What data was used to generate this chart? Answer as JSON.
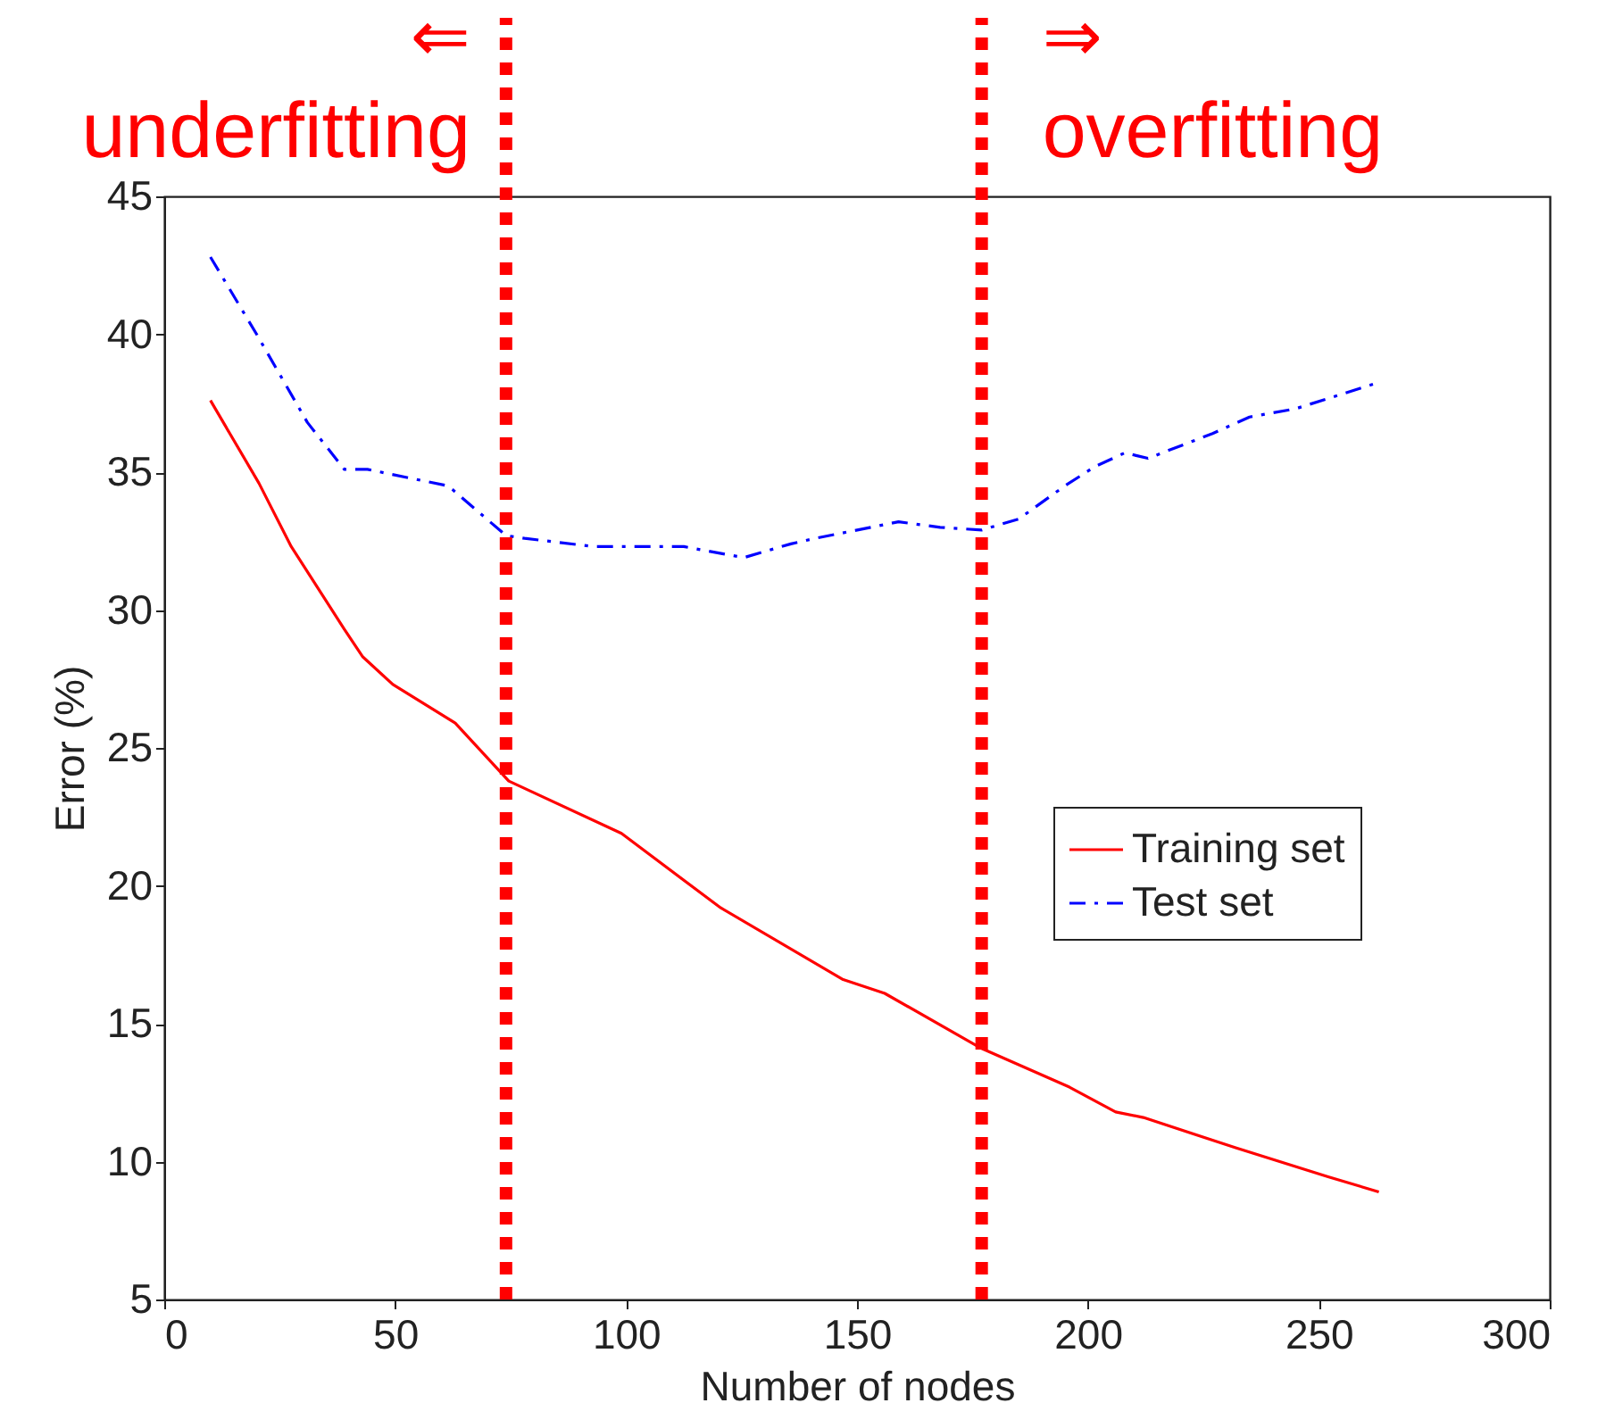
{
  "chart_data": {
    "type": "line",
    "xlabel": "Number of nodes",
    "ylabel": "Error (%)",
    "xlim": [
      0,
      300
    ],
    "xticks": [
      0,
      50,
      100,
      150,
      200,
      250,
      300
    ],
    "ylim": [
      5,
      45
    ],
    "yticks": [
      5,
      10,
      15,
      20,
      25,
      30,
      35,
      40,
      45
    ],
    "grid": false,
    "legend": "right",
    "marker": "none",
    "series": [
      {
        "name": "Training set",
        "color": "#ff0000",
        "line_style": "solid",
        "x": [
          10,
          20.5,
          27.5,
          39,
          43,
          49.5,
          63,
          74.6,
          99,
          120.5,
          147,
          156,
          177,
          196,
          206,
          212,
          232,
          252,
          263
        ],
        "values": [
          37.6,
          34.6,
          32.3,
          29.3,
          28.3,
          27.3,
          25.9,
          23.8,
          21.9,
          19.2,
          16.6,
          16.1,
          14.1,
          12.7,
          11.8,
          11.6,
          10.5,
          9.45,
          8.9
        ]
      },
      {
        "name": "Test set",
        "color": "#0000ff",
        "line_style": "dashdot",
        "x": [
          10,
          20,
          31,
          39,
          44,
          61.5,
          74,
          78,
          93,
          112.5,
          125.5,
          135.7,
          141,
          159,
          168,
          177,
          185,
          195,
          201.5,
          208,
          213,
          227,
          235,
          245,
          262
        ],
        "values": [
          42.8,
          40.0,
          36.8,
          35.1,
          35.1,
          34.5,
          32.7,
          32.6,
          32.3,
          32.3,
          31.9,
          32.4,
          32.6,
          33.2,
          33.0,
          32.9,
          33.3,
          34.5,
          35.2,
          35.7,
          35.5,
          36.4,
          37.0,
          37.3,
          38.2
        ]
      }
    ],
    "ref_lines": [
      {
        "axis": "x",
        "value": 74,
        "label": "underfitting",
        "color": "#ff0000",
        "line_style": "dotted"
      },
      {
        "axis": "x",
        "value": 177,
        "label": "overfitting",
        "color": "#ff0000",
        "line_style": "dotted"
      }
    ],
    "annotations": [
      "⇐",
      "⇒"
    ]
  }
}
